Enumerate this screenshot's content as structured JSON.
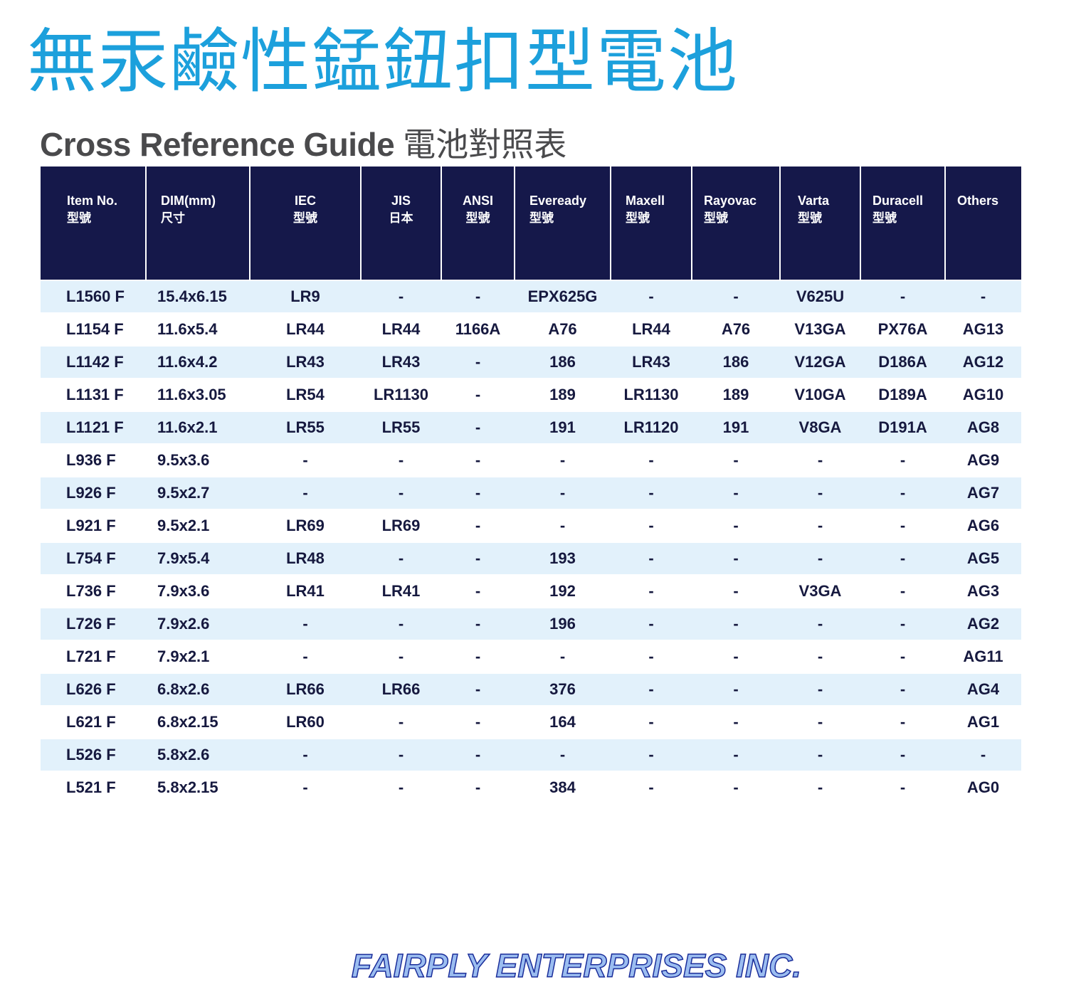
{
  "title": "無汞鹼性錳鈕扣型電池",
  "subtitle": {
    "en": "Cross Reference Guide",
    "zh": "電池對照表"
  },
  "table": {
    "headers": [
      {
        "en": "Item No.",
        "zh": "型號"
      },
      {
        "en": "DIM(mm)",
        "zh": "尺寸"
      },
      {
        "en": "IEC",
        "zh": "型號"
      },
      {
        "en": "JIS",
        "zh": "日本"
      },
      {
        "en": "ANSI",
        "zh": "型號"
      },
      {
        "en": "Eveready",
        "zh": "型號"
      },
      {
        "en": "Maxell",
        "zh": "型號"
      },
      {
        "en": "Rayovac",
        "zh": "型號"
      },
      {
        "en": "Varta",
        "zh": "型號"
      },
      {
        "en": "Duracell",
        "zh": "型號"
      },
      {
        "en": "Others",
        "zh": ""
      }
    ],
    "rows": [
      [
        "L1560 F",
        "15.4x6.15",
        "LR9",
        "-",
        "-",
        "EPX625G",
        "-",
        "-",
        "V625U",
        "-",
        "-"
      ],
      [
        "L1154 F",
        "11.6x5.4",
        "LR44",
        "LR44",
        "1166A",
        "A76",
        "LR44",
        "A76",
        "V13GA",
        "PX76A",
        "AG13"
      ],
      [
        "L1142 F",
        "11.6x4.2",
        "LR43",
        "LR43",
        "-",
        "186",
        "LR43",
        "186",
        "V12GA",
        "D186A",
        "AG12"
      ],
      [
        "L1131 F",
        "11.6x3.05",
        "LR54",
        "LR1130",
        "-",
        "189",
        "LR1130",
        "189",
        "V10GA",
        "D189A",
        "AG10"
      ],
      [
        "L1121 F",
        "11.6x2.1",
        "LR55",
        "LR55",
        "-",
        "191",
        "LR1120",
        "191",
        "V8GA",
        "D191A",
        "AG8"
      ],
      [
        "L936 F",
        "9.5x3.6",
        "-",
        "-",
        "-",
        "-",
        "-",
        "-",
        "-",
        "-",
        "AG9"
      ],
      [
        "L926 F",
        "9.5x2.7",
        "-",
        "-",
        "-",
        "-",
        "-",
        "-",
        "-",
        "-",
        "AG7"
      ],
      [
        "L921 F",
        "9.5x2.1",
        "LR69",
        "LR69",
        "-",
        "-",
        "-",
        "-",
        "-",
        "-",
        "AG6"
      ],
      [
        "L754 F",
        "7.9x5.4",
        "LR48",
        "-",
        "-",
        "193",
        "-",
        "-",
        "-",
        "-",
        "AG5"
      ],
      [
        "L736 F",
        "7.9x3.6",
        "LR41",
        "LR41",
        "-",
        "192",
        "-",
        "-",
        "V3GA",
        "-",
        "AG3"
      ],
      [
        "L726 F",
        "7.9x2.6",
        "-",
        "-",
        "-",
        "196",
        "-",
        "-",
        "-",
        "-",
        "AG2"
      ],
      [
        "L721 F",
        "7.9x2.1",
        "-",
        "-",
        "-",
        "-",
        "-",
        "-",
        "-",
        "-",
        "AG11"
      ],
      [
        "L626 F",
        "6.8x2.6",
        "LR66",
        "LR66",
        "-",
        "376",
        "-",
        "-",
        "-",
        "-",
        "AG4"
      ],
      [
        "L621 F",
        "6.8x2.15",
        "LR60",
        "-",
        "-",
        "164",
        "-",
        "-",
        "-",
        "-",
        "AG1"
      ],
      [
        "L526 F",
        "5.8x2.6",
        "-",
        "-",
        "-",
        "-",
        "-",
        "-",
        "-",
        "-",
        "-"
      ],
      [
        "L521 F",
        "5.8x2.15",
        "-",
        "-",
        "-",
        "384",
        "-",
        "-",
        "-",
        "-",
        "AG0"
      ]
    ]
  },
  "footer": "FAIRPLY ENTERPRISES INC.",
  "colors": {
    "title": "#1ca0dc",
    "header_bg": "#15184a",
    "row_alt_bg": "#e2f1fb",
    "cell_text": "#16193f"
  }
}
